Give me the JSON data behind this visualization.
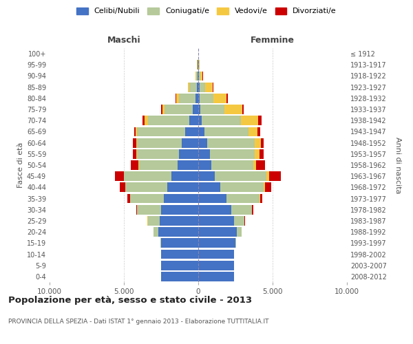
{
  "age_groups": [
    "0-4",
    "5-9",
    "10-14",
    "15-19",
    "20-24",
    "25-29",
    "30-34",
    "35-39",
    "40-44",
    "45-49",
    "50-54",
    "55-59",
    "60-64",
    "65-69",
    "70-74",
    "75-79",
    "80-84",
    "85-89",
    "90-94",
    "95-99",
    "100+"
  ],
  "birth_years": [
    "2008-2012",
    "2003-2007",
    "1998-2002",
    "1993-1997",
    "1988-1992",
    "1983-1987",
    "1978-1982",
    "1973-1977",
    "1968-1972",
    "1963-1967",
    "1958-1962",
    "1953-1957",
    "1948-1952",
    "1943-1947",
    "1938-1942",
    "1933-1937",
    "1928-1932",
    "1923-1927",
    "1918-1922",
    "1913-1917",
    "≤ 1912"
  ],
  "maschi": {
    "celibi": [
      2500,
      2500,
      2500,
      2500,
      2700,
      2600,
      2500,
      2300,
      2100,
      1800,
      1400,
      1300,
      1100,
      900,
      600,
      350,
      200,
      100,
      60,
      30,
      10
    ],
    "coniugati": [
      5,
      10,
      20,
      60,
      300,
      800,
      1600,
      2300,
      2800,
      3200,
      2600,
      2800,
      3000,
      3200,
      2800,
      1900,
      1100,
      500,
      100,
      30,
      5
    ],
    "vedovi": [
      1,
      1,
      1,
      2,
      5,
      5,
      5,
      5,
      10,
      20,
      30,
      50,
      80,
      100,
      200,
      150,
      200,
      80,
      30,
      10,
      2
    ],
    "divorziati": [
      1,
      1,
      2,
      5,
      10,
      30,
      80,
      150,
      350,
      600,
      500,
      250,
      200,
      120,
      150,
      100,
      50,
      30,
      10,
      5,
      1
    ]
  },
  "femmine": {
    "nubili": [
      2400,
      2400,
      2400,
      2500,
      2600,
      2400,
      2200,
      1900,
      1500,
      1100,
      900,
      800,
      600,
      400,
      250,
      150,
      100,
      80,
      50,
      20,
      10
    ],
    "coniugate": [
      5,
      8,
      15,
      50,
      300,
      700,
      1400,
      2200,
      2900,
      3500,
      2800,
      3000,
      3200,
      3000,
      2600,
      1600,
      900,
      400,
      100,
      20,
      5
    ],
    "vedove": [
      1,
      1,
      1,
      2,
      5,
      10,
      20,
      50,
      100,
      150,
      200,
      300,
      400,
      600,
      1200,
      1200,
      900,
      500,
      150,
      30,
      5
    ],
    "divorziate": [
      1,
      1,
      2,
      3,
      10,
      30,
      80,
      150,
      400,
      800,
      600,
      300,
      200,
      150,
      200,
      100,
      80,
      50,
      10,
      5,
      1
    ]
  },
  "colors": {
    "celibi": "#4472c4",
    "coniugati": "#b5c99a",
    "vedovi": "#f5c842",
    "divorziati": "#cc0000"
  },
  "xlim": 10000,
  "xticks": [
    -10000,
    -5000,
    0,
    5000,
    10000
  ],
  "xticklabels": [
    "10.000",
    "5.000",
    "0",
    "5.000",
    "10.000"
  ],
  "title": "Popolazione per età, sesso e stato civile - 2013",
  "subtitle": "PROVINCIA DELLA SPEZIA - Dati ISTAT 1° gennaio 2013 - Elaborazione TUTTITALIA.IT",
  "ylabel_left": "Fasce di età",
  "ylabel_right": "Anni di nascita",
  "label_maschi": "Maschi",
  "label_femmine": "Femmine",
  "legend_labels": [
    "Celibi/Nubili",
    "Coniugati/e",
    "Vedovi/e",
    "Divorziati/e"
  ],
  "bg_color": "#ffffff",
  "grid_color": "#cccccc"
}
